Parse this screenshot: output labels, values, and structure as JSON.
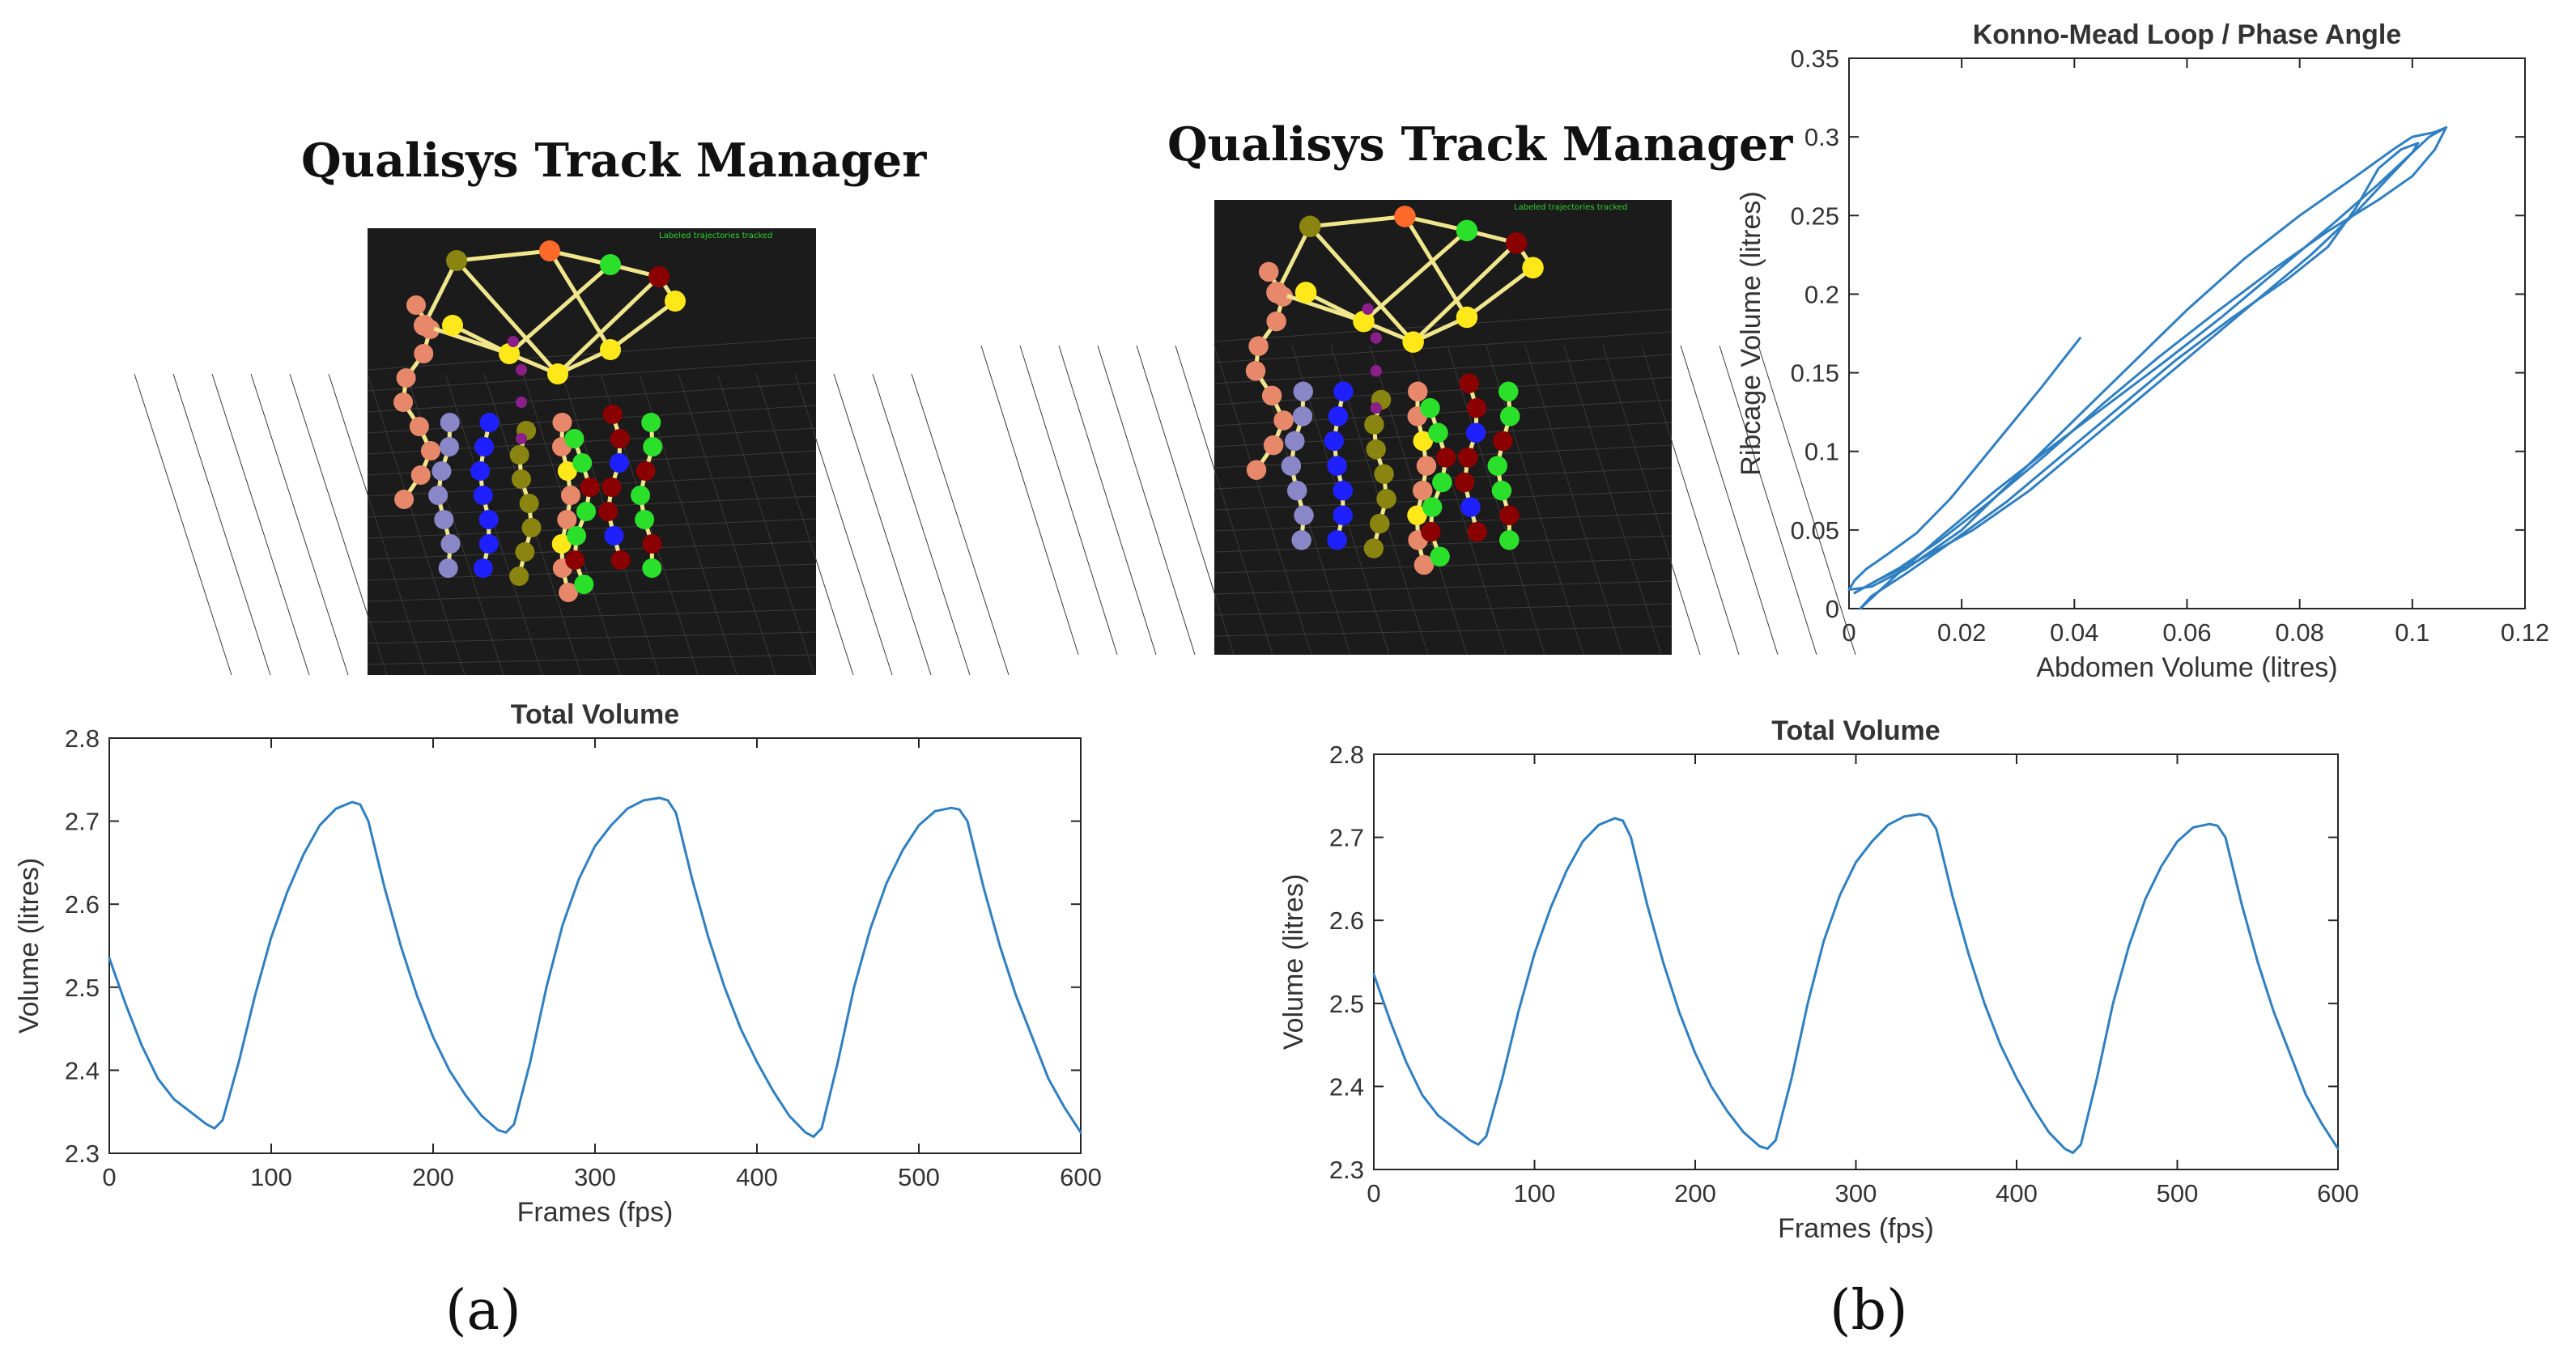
{
  "panel_a": {
    "qtm_title": "Qualisys Track Manager",
    "qtm_status": "Labeled trajectories tracked",
    "panel_label": "(a)"
  },
  "panel_b": {
    "qtm_title": "Qualisys Track Manager",
    "qtm_status": "Labeled trajectories tracked",
    "panel_label": "(b)"
  },
  "colors": {
    "line": "#2f7fc1",
    "axis": "#262626",
    "qtm_background": "#1b1b1b",
    "qtm_grid": "#3a3a3a",
    "qtm_status_text": "#2fd12f",
    "marker_colors": [
      "#e8886a",
      "#ffe81a",
      "#8a8410",
      "#ff6a2a",
      "#2be02b",
      "#8b0000",
      "#1f20ff",
      "#8a87c8",
      "#8a1f8a"
    ],
    "link_color": "#f0e68c"
  },
  "chart_data": [
    {
      "id": "total-volume-a",
      "type": "line",
      "title": "Total Volume",
      "xlabel": "Frames (fps)",
      "ylabel": "Volume (litres)",
      "xlim": [
        0,
        600
      ],
      "ylim": [
        2.3,
        2.8
      ],
      "xticks": [
        0,
        100,
        200,
        300,
        400,
        500,
        600
      ],
      "yticks": [
        2.3,
        2.4,
        2.5,
        2.6,
        2.7,
        2.8
      ],
      "grid": false,
      "series": [
        {
          "x": [
            0,
            10,
            20,
            30,
            40,
            50,
            60,
            65,
            70,
            80,
            90,
            100,
            110,
            120,
            130,
            140,
            150,
            155,
            160,
            170,
            180,
            190,
            200,
            210,
            220,
            230,
            240,
            245,
            250,
            260,
            270,
            280,
            290,
            300,
            310,
            320,
            330,
            340,
            345,
            350,
            360,
            370,
            380,
            390,
            400,
            410,
            420,
            430,
            435,
            440,
            450,
            460,
            470,
            480,
            490,
            500,
            510,
            520,
            525,
            530,
            540,
            550,
            560,
            570,
            580,
            590,
            600
          ],
          "y": [
            2.535,
            2.48,
            2.43,
            2.39,
            2.365,
            2.35,
            2.335,
            2.33,
            2.34,
            2.41,
            2.49,
            2.56,
            2.615,
            2.66,
            2.695,
            2.715,
            2.723,
            2.72,
            2.7,
            2.62,
            2.55,
            2.49,
            2.44,
            2.4,
            2.37,
            2.345,
            2.328,
            2.325,
            2.335,
            2.41,
            2.5,
            2.575,
            2.63,
            2.67,
            2.695,
            2.715,
            2.725,
            2.728,
            2.725,
            2.71,
            2.63,
            2.56,
            2.5,
            2.45,
            2.41,
            2.375,
            2.345,
            2.325,
            2.32,
            2.33,
            2.41,
            2.5,
            2.57,
            2.625,
            2.665,
            2.695,
            2.712,
            2.716,
            2.714,
            2.7,
            2.62,
            2.55,
            2.49,
            2.44,
            2.39,
            2.355,
            2.325
          ]
        }
      ]
    },
    {
      "id": "total-volume-b",
      "type": "line",
      "title": "Total Volume",
      "xlabel": "Frames (fps)",
      "ylabel": "Volume (litres)",
      "xlim": [
        0,
        600
      ],
      "ylim": [
        2.3,
        2.8
      ],
      "xticks": [
        0,
        100,
        200,
        300,
        400,
        500,
        600
      ],
      "yticks": [
        2.3,
        2.4,
        2.5,
        2.6,
        2.7,
        2.8
      ],
      "grid": false,
      "series": [
        {
          "x": [
            0,
            10,
            20,
            30,
            40,
            50,
            60,
            65,
            70,
            80,
            90,
            100,
            110,
            120,
            130,
            140,
            150,
            155,
            160,
            170,
            180,
            190,
            200,
            210,
            220,
            230,
            240,
            245,
            250,
            260,
            270,
            280,
            290,
            300,
            310,
            320,
            330,
            340,
            345,
            350,
            360,
            370,
            380,
            390,
            400,
            410,
            420,
            430,
            435,
            440,
            450,
            460,
            470,
            480,
            490,
            500,
            510,
            520,
            525,
            530,
            540,
            550,
            560,
            570,
            580,
            590,
            600
          ],
          "y": [
            2.535,
            2.48,
            2.43,
            2.39,
            2.365,
            2.35,
            2.335,
            2.33,
            2.34,
            2.41,
            2.49,
            2.56,
            2.615,
            2.66,
            2.695,
            2.715,
            2.723,
            2.72,
            2.7,
            2.62,
            2.55,
            2.49,
            2.44,
            2.4,
            2.37,
            2.345,
            2.328,
            2.325,
            2.335,
            2.41,
            2.5,
            2.575,
            2.63,
            2.67,
            2.695,
            2.715,
            2.725,
            2.728,
            2.725,
            2.71,
            2.63,
            2.56,
            2.5,
            2.45,
            2.41,
            2.375,
            2.345,
            2.325,
            2.32,
            2.33,
            2.41,
            2.5,
            2.57,
            2.625,
            2.665,
            2.695,
            2.712,
            2.716,
            2.714,
            2.7,
            2.62,
            2.55,
            2.49,
            2.44,
            2.39,
            2.355,
            2.325
          ]
        }
      ]
    },
    {
      "id": "konno-mead",
      "type": "line",
      "title": "Konno-Mead Loop / Phase Angle",
      "xlabel": "Abdomen Volume (litres)",
      "ylabel": "Ribcage Volume (litres)",
      "xlim": [
        0,
        0.12
      ],
      "ylim": [
        0,
        0.35
      ],
      "xticks": [
        0,
        0.02,
        0.04,
        0.06,
        0.08,
        0.1,
        0.12
      ],
      "yticks": [
        0,
        0.05,
        0.1,
        0.15,
        0.2,
        0.25,
        0.3,
        0.35
      ],
      "grid": false,
      "series": [
        {
          "x": [
            0.041,
            0.034,
            0.026,
            0.018,
            0.012,
            0.007,
            0.003,
            0.001,
            0.0,
            0.004,
            0.01,
            0.02,
            0.03,
            0.04,
            0.05,
            0.06,
            0.07,
            0.08,
            0.09,
            0.097,
            0.1,
            0.104,
            0.106
          ],
          "y": [
            0.172,
            0.14,
            0.105,
            0.07,
            0.048,
            0.035,
            0.025,
            0.018,
            0.012,
            0.014,
            0.025,
            0.05,
            0.085,
            0.12,
            0.155,
            0.19,
            0.222,
            0.25,
            0.275,
            0.293,
            0.3,
            0.303,
            0.306
          ]
        },
        {
          "x": [
            0.106,
            0.104,
            0.1,
            0.094,
            0.085,
            0.075,
            0.065,
            0.055,
            0.045,
            0.035,
            0.025,
            0.016,
            0.009,
            0.004,
            0.001
          ],
          "y": [
            0.306,
            0.292,
            0.275,
            0.26,
            0.24,
            0.215,
            0.188,
            0.16,
            0.13,
            0.098,
            0.068,
            0.043,
            0.026,
            0.016,
            0.01
          ]
        },
        {
          "x": [
            0.001,
            0.005,
            0.012,
            0.022,
            0.032,
            0.042,
            0.052,
            0.062,
            0.072,
            0.082,
            0.09,
            0.096,
            0.1,
            0.101
          ],
          "y": [
            0.01,
            0.018,
            0.03,
            0.05,
            0.075,
            0.105,
            0.135,
            0.165,
            0.195,
            0.225,
            0.252,
            0.275,
            0.29,
            0.296
          ]
        },
        {
          "x": [
            0.101,
            0.098,
            0.094,
            0.09,
            0.085,
            0.078,
            0.068,
            0.058,
            0.048,
            0.038,
            0.028,
            0.018,
            0.01,
            0.004,
            0.002
          ],
          "y": [
            0.296,
            0.292,
            0.28,
            0.255,
            0.23,
            0.21,
            0.185,
            0.158,
            0.128,
            0.098,
            0.068,
            0.042,
            0.022,
            0.008,
            0.0
          ]
        },
        {
          "x": [
            0.002,
            0.008,
            0.016,
            0.026,
            0.036,
            0.046,
            0.056,
            0.066,
            0.076,
            0.086,
            0.094,
            0.1,
            0.103,
            0.106
          ],
          "y": [
            0.0,
            0.02,
            0.045,
            0.075,
            0.103,
            0.13,
            0.157,
            0.185,
            0.215,
            0.245,
            0.27,
            0.29,
            0.3,
            0.306
          ]
        }
      ]
    }
  ]
}
